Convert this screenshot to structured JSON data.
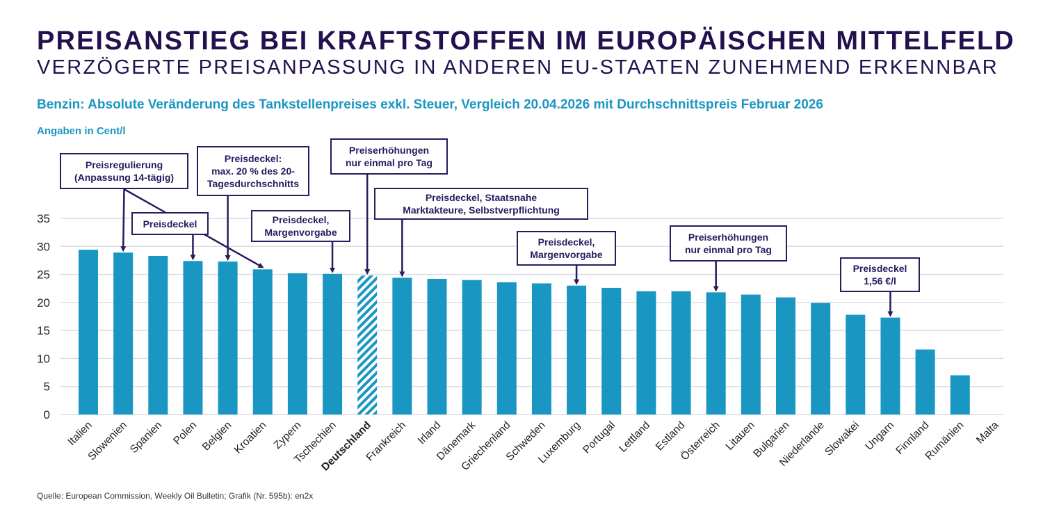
{
  "header": {
    "title": "PREISANSTIEG BEI KRAFTSTOFFEN IM EUROPÄISCHEN MITTELFELD",
    "subtitle": "VERZÖGERTE PREISANPASSUNG IN ANDEREN EU-STAATEN ZUNEHMEND ERKENNBAR",
    "chart_heading": "Benzin: Absolute Veränderung des Tankstellenpreises exkl. Steuer, Vergleich 20.04.2026 mit Durchschnittspreis Februar 2026",
    "unit_label": "Angaben in Cent/l"
  },
  "footer": {
    "source": "Quelle: European Commission, Weekly Oil Bulletin; Grafik (Nr. 595b): en2x"
  },
  "colors": {
    "bar": "#1a96c3",
    "highlight_hatch": "#1a96c3",
    "annotation": "#2a1a5e",
    "grid": "#d9dee3",
    "title": "#23104f",
    "heading": "#1b96c2"
  },
  "chart_data": {
    "type": "bar",
    "title": "Benzin: Absolute Veränderung des Tankstellenpreises exkl. Steuer, Vergleich 20.04.2026 mit Durchschnittspreis Februar 2026",
    "xlabel": "",
    "ylabel": "Angaben in Cent/l",
    "ylim": [
      0,
      35
    ],
    "yticks": [
      0,
      5,
      10,
      15,
      20,
      25,
      30,
      35
    ],
    "grid": true,
    "legend": "none",
    "categories": [
      "Italien",
      "Slowenien",
      "Spanien",
      "Polen",
      "Belgien",
      "Kroatien",
      "Zypern",
      "Tschechien",
      "Deutschland",
      "Frankreich",
      "Irland",
      "Dänemark",
      "Griechenland",
      "Schweden",
      "Luxemburg",
      "Portugal",
      "Lettland",
      "Estland",
      "Österreich",
      "Litauen",
      "Bulgarien",
      "Niederlande",
      "Slowakei",
      "Ungarn",
      "Finnland",
      "Rumänien",
      "Malta"
    ],
    "values": [
      29.4,
      28.9,
      28.3,
      27.4,
      27.3,
      25.9,
      25.2,
      25.1,
      24.8,
      24.4,
      24.2,
      24.0,
      23.6,
      23.4,
      23.0,
      22.6,
      22.0,
      22.0,
      21.8,
      21.4,
      20.9,
      19.9,
      17.8,
      17.3,
      11.6,
      7.0,
      0
    ],
    "highlight": "Deutschland",
    "annotations": [
      {
        "lines": [
          "Preisregulierung",
          "(Anpassung 14-tägig)"
        ],
        "targets": [
          "Slowenien",
          "Kroatien"
        ]
      },
      {
        "lines": [
          "Preisdeckel"
        ],
        "targets": [
          "Polen"
        ]
      },
      {
        "lines": [
          "Preisdeckel:",
          "max. 20 % des 20-",
          "Tagesdurchschnitts"
        ],
        "targets": [
          "Belgien"
        ]
      },
      {
        "lines": [
          "Preisdeckel,",
          "Margenvorgabe"
        ],
        "targets": [
          "Tschechien"
        ]
      },
      {
        "lines": [
          "Preiserhöhungen",
          "nur einmal pro Tag"
        ],
        "targets": [
          "Deutschland"
        ]
      },
      {
        "lines": [
          "Preisdeckel, Staatsnahe",
          "Marktakteure, Selbstverpflichtung"
        ],
        "targets": [
          "Frankreich"
        ]
      },
      {
        "lines": [
          "Preisdeckel,",
          "Margenvorgabe"
        ],
        "targets": [
          "Luxemburg"
        ]
      },
      {
        "lines": [
          "Preiserhöhungen",
          "nur einmal pro Tag"
        ],
        "targets": [
          "Österreich"
        ]
      },
      {
        "lines": [
          "Preisdeckel",
          "1,56 €/l"
        ],
        "targets": [
          "Ungarn"
        ]
      }
    ]
  }
}
